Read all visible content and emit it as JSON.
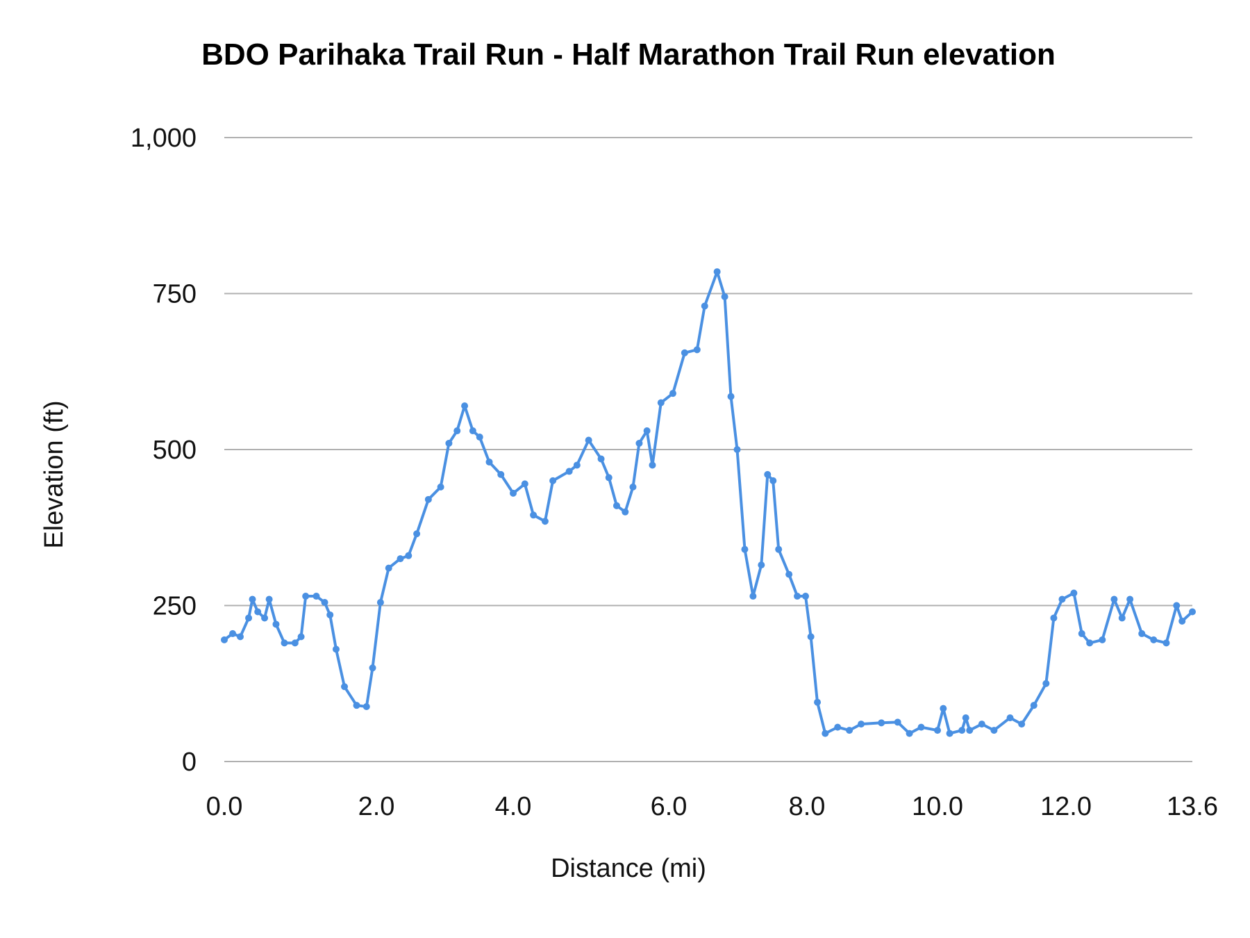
{
  "chart_data": {
    "type": "line",
    "title": "BDO Parihaka Trail Run - Half Marathon Trail Run elevation",
    "xlabel": "Distance (mi)",
    "ylabel": "Elevation (ft)",
    "xticks": [
      "0.0",
      "2.0",
      "4.0",
      "6.0",
      "8.0",
      "10.0",
      "12.0",
      "13.6"
    ],
    "xtick_values": [
      0,
      2,
      4,
      6,
      8,
      10,
      12,
      13.6
    ],
    "yticks": [
      "0",
      "250",
      "500",
      "750",
      "1,000"
    ],
    "ytick_values": [
      0,
      250,
      500,
      750,
      1000
    ],
    "xlim": [
      0,
      13.6
    ],
    "ylim": [
      0,
      1000
    ],
    "grid": "horizontal",
    "line_color": "#4a90e2",
    "markers": true,
    "x": [
      0,
      0.11,
      0.21,
      0.32,
      0.37,
      0.44,
      0.53,
      0.59,
      0.68,
      0.79,
      0.93,
      1.01,
      1.07,
      1.21,
      1.32,
      1.39,
      1.47,
      1.58,
      1.74,
      1.87,
      1.95,
      2.06,
      2.18,
      2.35,
      2.47,
      2.59,
      2.76,
      2.94,
      3.06,
      3.18,
      3.29,
      3.41,
      3.51,
      3.65,
      3.82,
      4.0,
      4.15,
      4.26,
      4.41,
      4.51,
      4.72,
      4.82,
      4.97,
      5.13,
      5.23,
      5.33,
      5.44,
      5.54,
      5.62,
      5.72,
      5.79,
      5.9,
      6.06,
      6.23,
      6.41,
      6.52,
      6.7,
      6.81,
      6.9,
      6.99,
      7.1,
      7.22,
      7.34,
      7.43,
      7.51,
      7.59,
      7.74,
      7.86,
      7.98,
      8.06,
      8.16,
      8.28,
      8.47,
      8.65,
      8.83,
      9.14,
      9.39,
      9.57,
      9.75,
      10.0,
      10.09,
      10.19,
      10.38,
      10.44,
      10.5,
      10.69,
      10.88,
      11.13,
      11.31,
      11.5,
      11.69,
      11.81,
      11.94,
      12.1,
      12.2,
      12.3,
      12.46,
      12.61,
      12.71,
      12.81,
      12.96,
      13.11,
      13.27,
      13.4,
      13.47,
      13.6
    ],
    "y": [
      195,
      205,
      200,
      230,
      260,
      240,
      230,
      260,
      220,
      190,
      190,
      200,
      265,
      265,
      255,
      235,
      180,
      120,
      90,
      88,
      150,
      255,
      310,
      325,
      330,
      365,
      420,
      440,
      510,
      530,
      570,
      530,
      520,
      480,
      460,
      430,
      445,
      395,
      385,
      450,
      465,
      475,
      515,
      485,
      455,
      410,
      400,
      440,
      510,
      530,
      475,
      575,
      590,
      655,
      660,
      730,
      785,
      745,
      585,
      500,
      340,
      265,
      315,
      460,
      450,
      340,
      300,
      265,
      265,
      200,
      95,
      45,
      55,
      50,
      60,
      62,
      63,
      45,
      55,
      50,
      85,
      45,
      50,
      70,
      50,
      60,
      50,
      70,
      60,
      90,
      125,
      230,
      260,
      270,
      205,
      190,
      195,
      260,
      230,
      260,
      205,
      195,
      190,
      250,
      225,
      240
    ]
  }
}
